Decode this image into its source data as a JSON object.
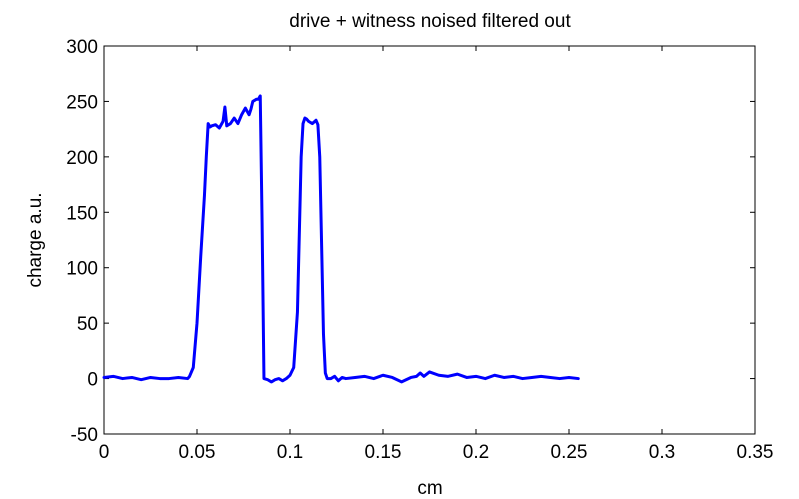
{
  "chart_data": {
    "type": "line",
    "title": "drive + witness noised filtered out",
    "xlabel": "cm",
    "ylabel": "charge a.u.",
    "xlim": [
      0,
      0.35
    ],
    "ylim": [
      -50,
      300
    ],
    "xticks": [
      0,
      0.05,
      0.1,
      0.15,
      0.2,
      0.25,
      0.3,
      0.35
    ],
    "xtick_labels": [
      "0",
      "0.05",
      "0.1",
      "0.15",
      "0.2",
      "0.25",
      "0.3",
      "0.35"
    ],
    "yticks": [
      -50,
      0,
      50,
      100,
      150,
      200,
      250,
      300
    ],
    "ytick_labels": [
      "-50",
      "0",
      "50",
      "100",
      "150",
      "200",
      "250",
      "300"
    ],
    "grid": false,
    "line_color": "#0000ff",
    "series": [
      {
        "x": [
          0,
          0.005,
          0.01,
          0.015,
          0.02,
          0.025,
          0.03,
          0.035,
          0.04,
          0.045,
          0.046,
          0.048,
          0.05,
          0.052,
          0.054,
          0.055,
          0.056,
          0.057,
          0.058,
          0.06,
          0.062,
          0.064,
          0.065,
          0.066,
          0.068,
          0.07,
          0.072,
          0.074,
          0.076,
          0.078,
          0.079,
          0.08,
          0.082,
          0.083,
          0.084,
          0.085,
          0.086,
          0.088,
          0.09,
          0.092,
          0.094,
          0.096,
          0.098,
          0.1,
          0.102,
          0.104,
          0.105,
          0.106,
          0.107,
          0.108,
          0.109,
          0.11,
          0.112,
          0.114,
          0.115,
          0.116,
          0.117,
          0.118,
          0.119,
          0.12,
          0.122,
          0.124,
          0.126,
          0.128,
          0.13,
          0.135,
          0.14,
          0.145,
          0.15,
          0.155,
          0.16,
          0.165,
          0.168,
          0.17,
          0.172,
          0.175,
          0.18,
          0.185,
          0.19,
          0.195,
          0.2,
          0.205,
          0.21,
          0.215,
          0.22,
          0.225,
          0.23,
          0.235,
          0.24,
          0.245,
          0.25,
          0.255
        ],
        "y": [
          1,
          2,
          0,
          1,
          -1,
          1,
          0,
          0,
          1,
          0,
          2,
          10,
          50,
          110,
          165,
          200,
          230,
          227,
          228,
          229,
          226,
          232,
          245,
          228,
          230,
          235,
          230,
          238,
          244,
          238,
          243,
          250,
          252,
          252,
          255,
          140,
          0,
          -1,
          -3,
          -1,
          0,
          -2,
          0,
          3,
          10,
          60,
          130,
          200,
          230,
          235,
          234,
          232,
          230,
          233,
          229,
          200,
          120,
          40,
          5,
          0,
          0,
          2,
          -2,
          1,
          0,
          1,
          2,
          0,
          3,
          1,
          -3,
          1,
          2,
          5,
          2,
          6,
          3,
          2,
          4,
          1,
          2,
          0,
          3,
          1,
          2,
          0,
          1,
          2,
          1,
          0,
          1,
          0
        ]
      }
    ]
  }
}
